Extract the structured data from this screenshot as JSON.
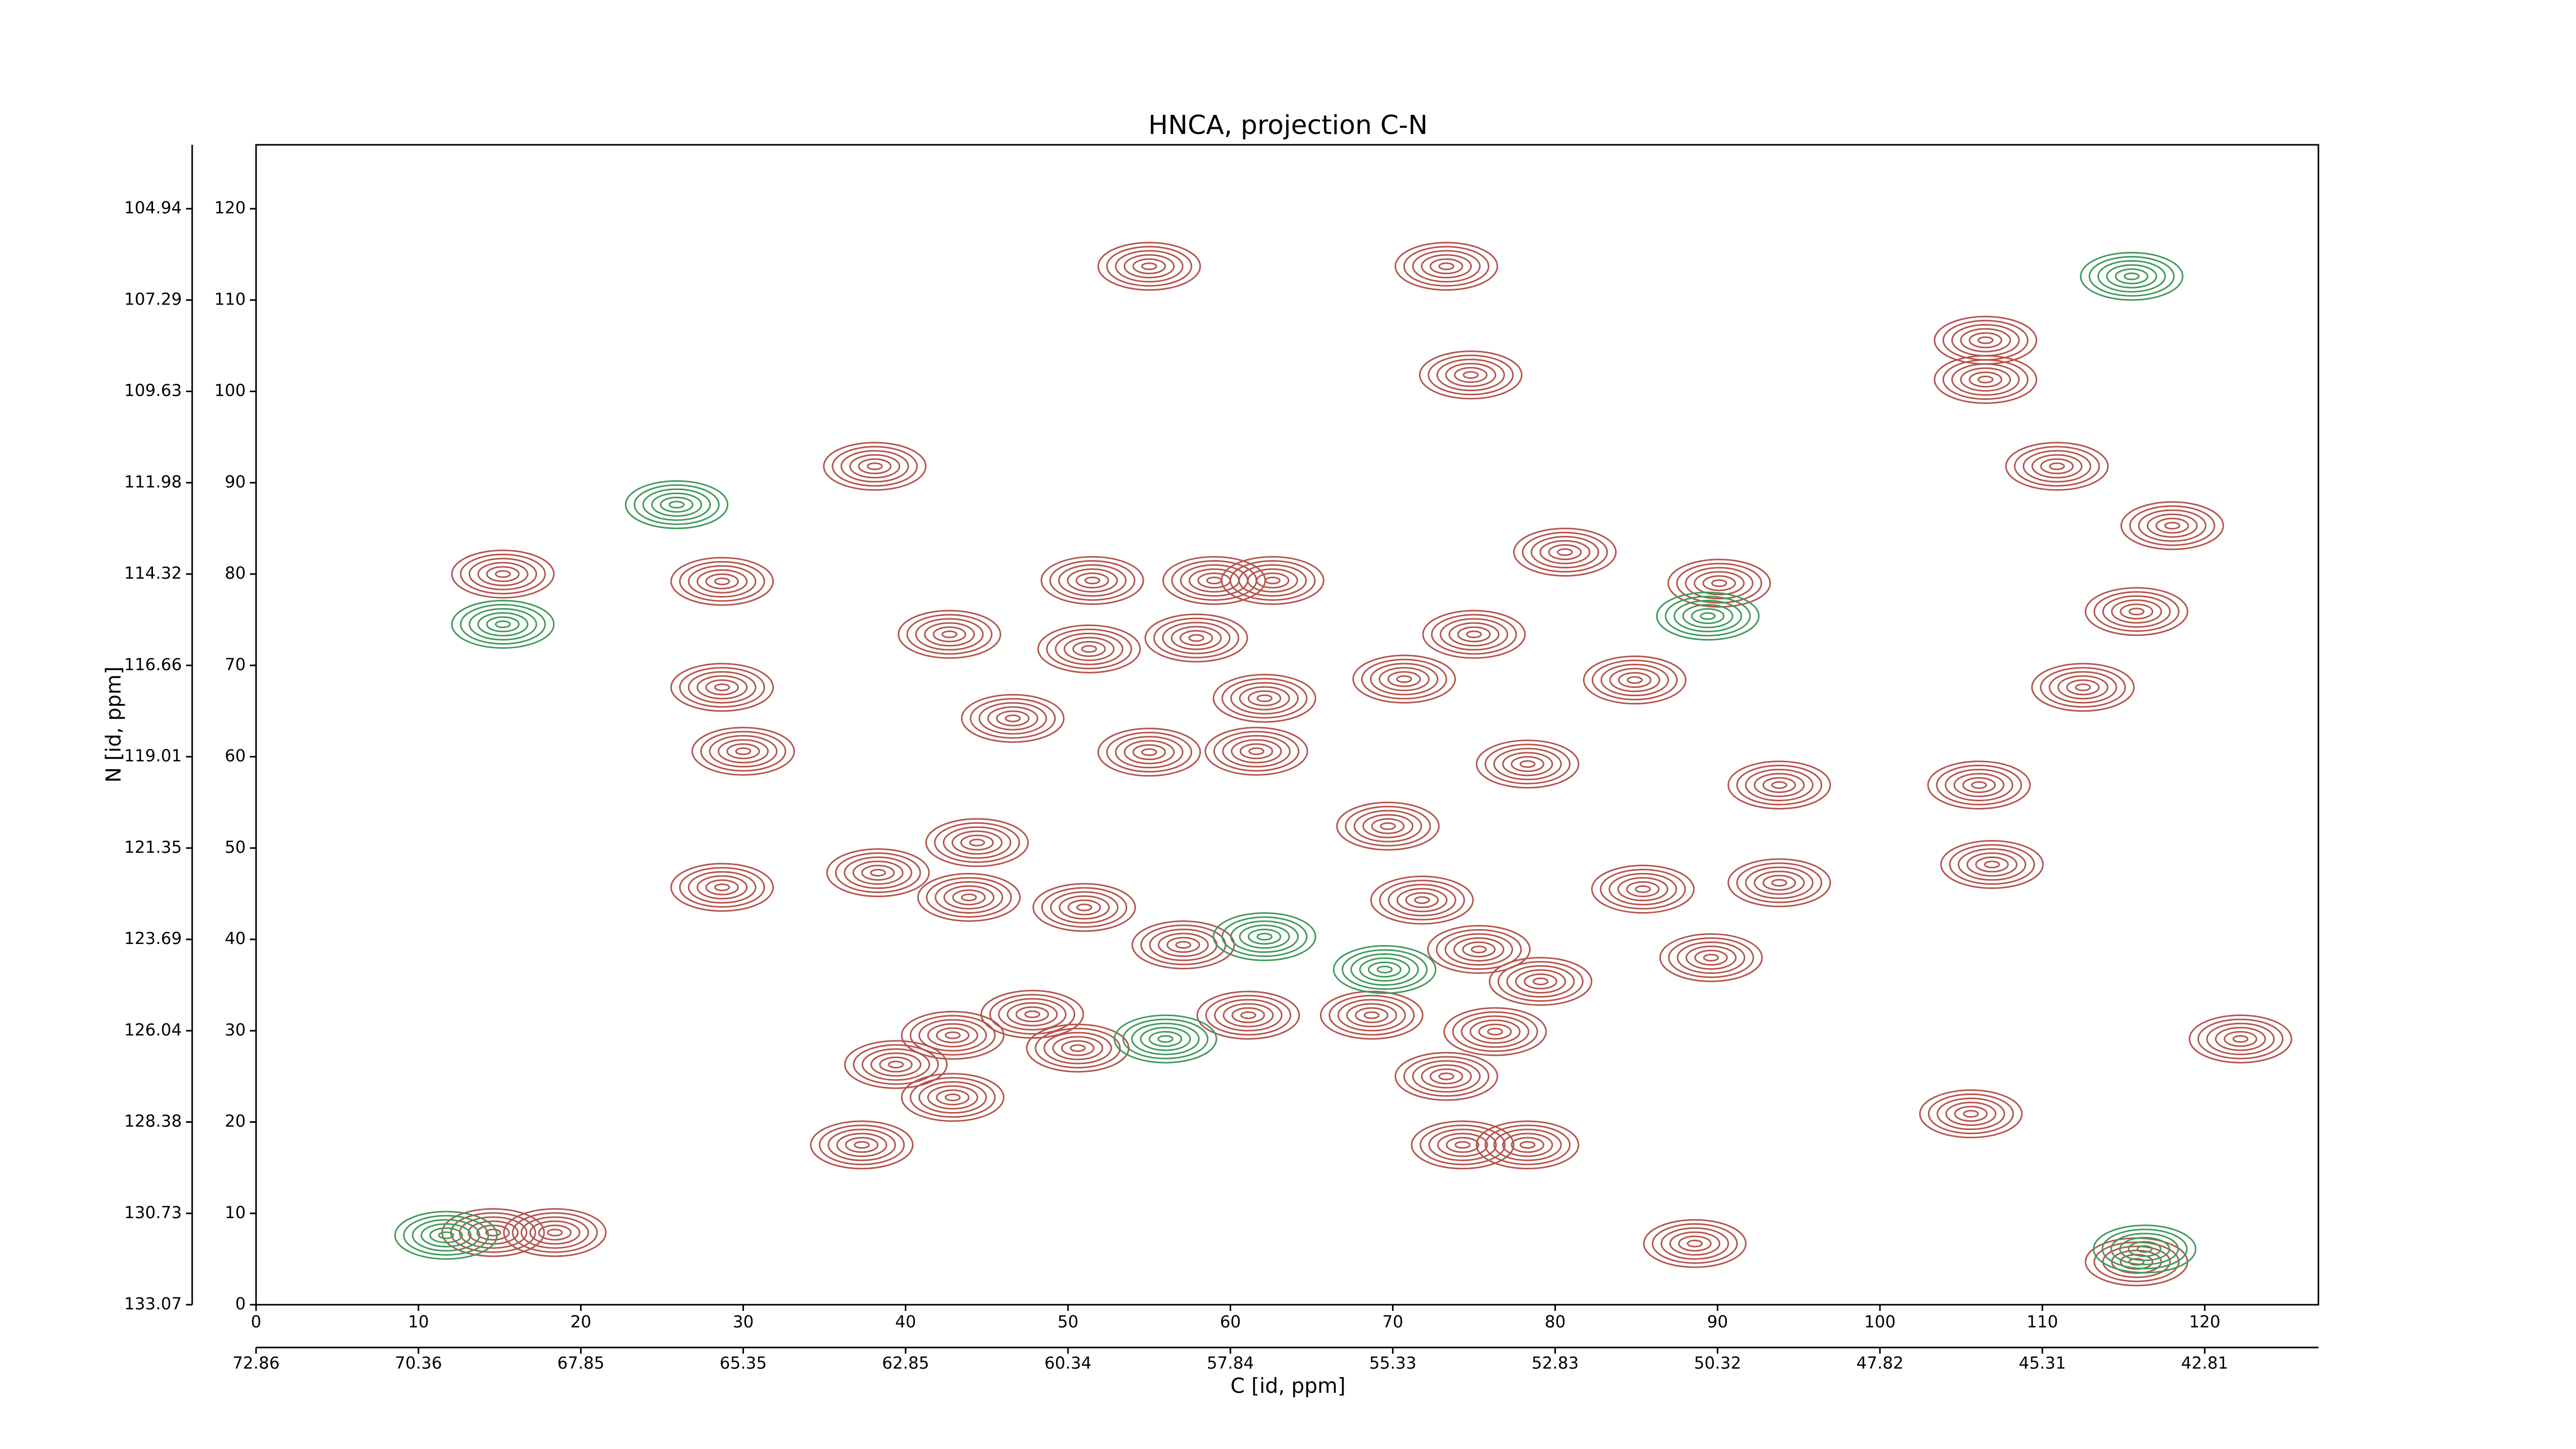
{
  "chart_data": {
    "type": "contour",
    "title": "HNCA, projection C-N",
    "x_label": "C [id, ppm]",
    "y_label": "N [id, ppm]",
    "xlim": [
      0,
      127
    ],
    "ylim": [
      0,
      127
    ],
    "xticks": [
      0,
      10,
      20,
      30,
      40,
      50,
      60,
      70,
      80,
      90,
      100,
      110,
      120
    ],
    "yticks": [
      0,
      10,
      20,
      30,
      40,
      50,
      60,
      70,
      80,
      90,
      100,
      110,
      120
    ],
    "x2ticks": [
      {
        "value": 0,
        "label": "72.86"
      },
      {
        "value": 10,
        "label": "70.36"
      },
      {
        "value": 20,
        "label": "67.85"
      },
      {
        "value": 30,
        "label": "65.35"
      },
      {
        "value": 40,
        "label": "62.85"
      },
      {
        "value": 50,
        "label": "60.34"
      },
      {
        "value": 60,
        "label": "57.84"
      },
      {
        "value": 70,
        "label": "55.33"
      },
      {
        "value": 80,
        "label": "52.83"
      },
      {
        "value": 90,
        "label": "50.32"
      },
      {
        "value": 100,
        "label": "47.82"
      },
      {
        "value": 110,
        "label": "45.31"
      },
      {
        "value": 120,
        "label": "42.81"
      }
    ],
    "y2ticks": [
      {
        "value": 120,
        "label": "104.94"
      },
      {
        "value": 110,
        "label": "107.29"
      },
      {
        "value": 100,
        "label": "109.63"
      },
      {
        "value": 90,
        "label": "111.98"
      },
      {
        "value": 80,
        "label": "114.32"
      },
      {
        "value": 70,
        "label": "116.66"
      },
      {
        "value": 60,
        "label": "119.01"
      },
      {
        "value": 50,
        "label": "121.35"
      },
      {
        "value": 40,
        "label": "123.69"
      },
      {
        "value": 30,
        "label": "126.04"
      },
      {
        "value": 20,
        "label": "128.38"
      },
      {
        "value": 10,
        "label": "130.73"
      },
      {
        "value": 0,
        "label": "133.07"
      }
    ],
    "series": [
      {
        "color": "#b5544c",
        "x": [
          73.3,
          55.0,
          106.5,
          106.5,
          74.8,
          38.1,
          110.9,
          118.0,
          115.8,
          15.2,
          28.7,
          80.6,
          90.1,
          59.0,
          62.6,
          51.5,
          42.7,
          51.3,
          57.9,
          75.0,
          84.9,
          70.7,
          62.1,
          28.7,
          46.6,
          30.0,
          55.0,
          61.6,
          78.3,
          93.8,
          106.1,
          112.5,
          44.4,
          69.7,
          106.9,
          28.7,
          38.3,
          51.0,
          43.9,
          71.8,
          85.4,
          93.8,
          57.1,
          75.3,
          79.1,
          47.8,
          42.9,
          61.1,
          68.7,
          76.3,
          50.6,
          39.4,
          42.9,
          73.3,
          78.3,
          74.3,
          37.3,
          14.6,
          18.4,
          88.6,
          122.2,
          105.6,
          115.8,
          89.6
        ],
        "y": [
          113.7,
          113.7,
          105.6,
          101.3,
          101.8,
          91.8,
          91.8,
          85.3,
          75.9,
          80.0,
          79.2,
          82.4,
          79.0,
          79.3,
          79.3,
          79.3,
          73.4,
          71.8,
          73.0,
          73.4,
          68.4,
          68.5,
          66.4,
          67.6,
          64.2,
          60.6,
          60.5,
          60.6,
          59.2,
          56.9,
          56.9,
          67.6,
          50.6,
          52.4,
          48.2,
          45.7,
          47.3,
          43.5,
          44.6,
          44.3,
          45.5,
          46.2,
          39.4,
          38.9,
          35.4,
          31.8,
          29.5,
          31.7,
          31.7,
          29.9,
          28.1,
          26.3,
          22.7,
          25.0,
          17.5,
          17.5,
          17.5,
          7.9,
          7.9,
          6.7,
          29.1,
          20.9,
          4.7,
          38.0
        ]
      },
      {
        "color": "#3f9a5a",
        "x": [
          15.2,
          25.9,
          89.4,
          62.1,
          56.0,
          116.3,
          115.5,
          11.7,
          69.5
        ],
        "y": [
          74.5,
          87.6,
          75.4,
          40.3,
          29.1,
          6.1,
          112.6,
          7.6,
          36.7
        ]
      }
    ]
  }
}
